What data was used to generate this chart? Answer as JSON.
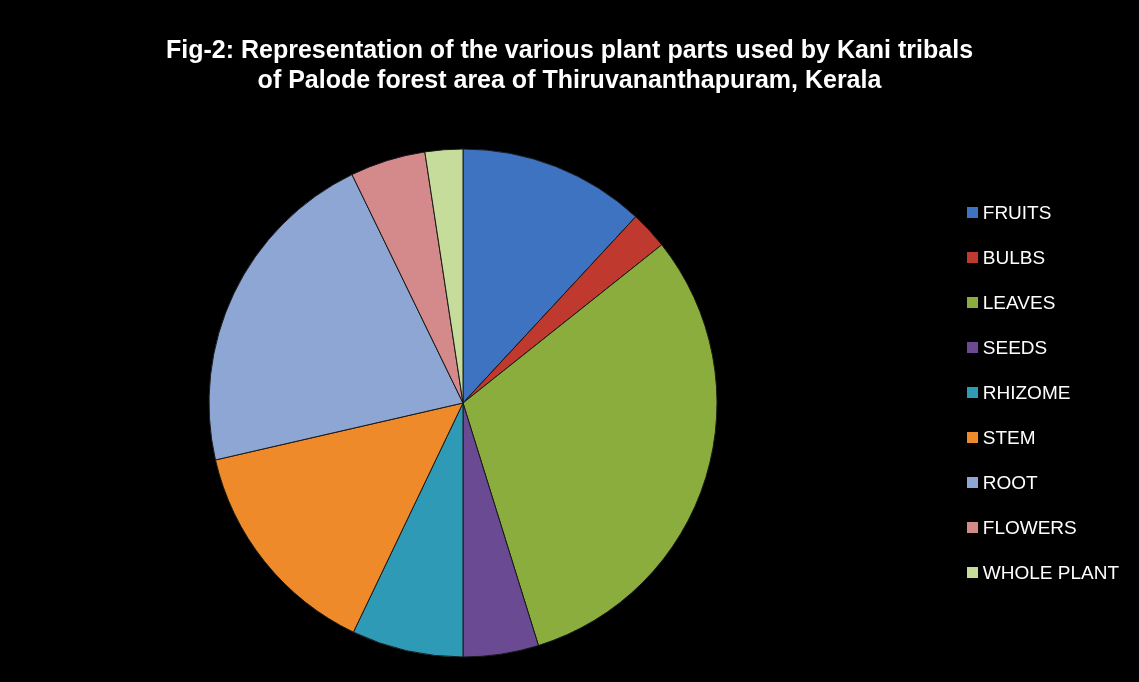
{
  "chart_data": {
    "type": "pie",
    "title": "Fig-2: Representation of the various plant parts used by Kani tribals\nof Palode forest area of Thiruvananthapuram, Kerala",
    "categories": [
      "FRUITS",
      "BULBS",
      "LEAVES",
      "SEEDS",
      "RHIZOME",
      "STEM",
      "ROOT",
      "FLOWERS",
      "WHOLE PLANT"
    ],
    "values": [
      11.9,
      2.4,
      30.9,
      4.8,
      7.1,
      14.3,
      21.4,
      4.8,
      2.4
    ],
    "colors": [
      "#3d73c0",
      "#c0392f",
      "#8aad3e",
      "#6a4a92",
      "#2e9ab5",
      "#ef8a2a",
      "#8ea6d4",
      "#d48a8a",
      "#c6dc9b"
    ],
    "legend": "right"
  }
}
